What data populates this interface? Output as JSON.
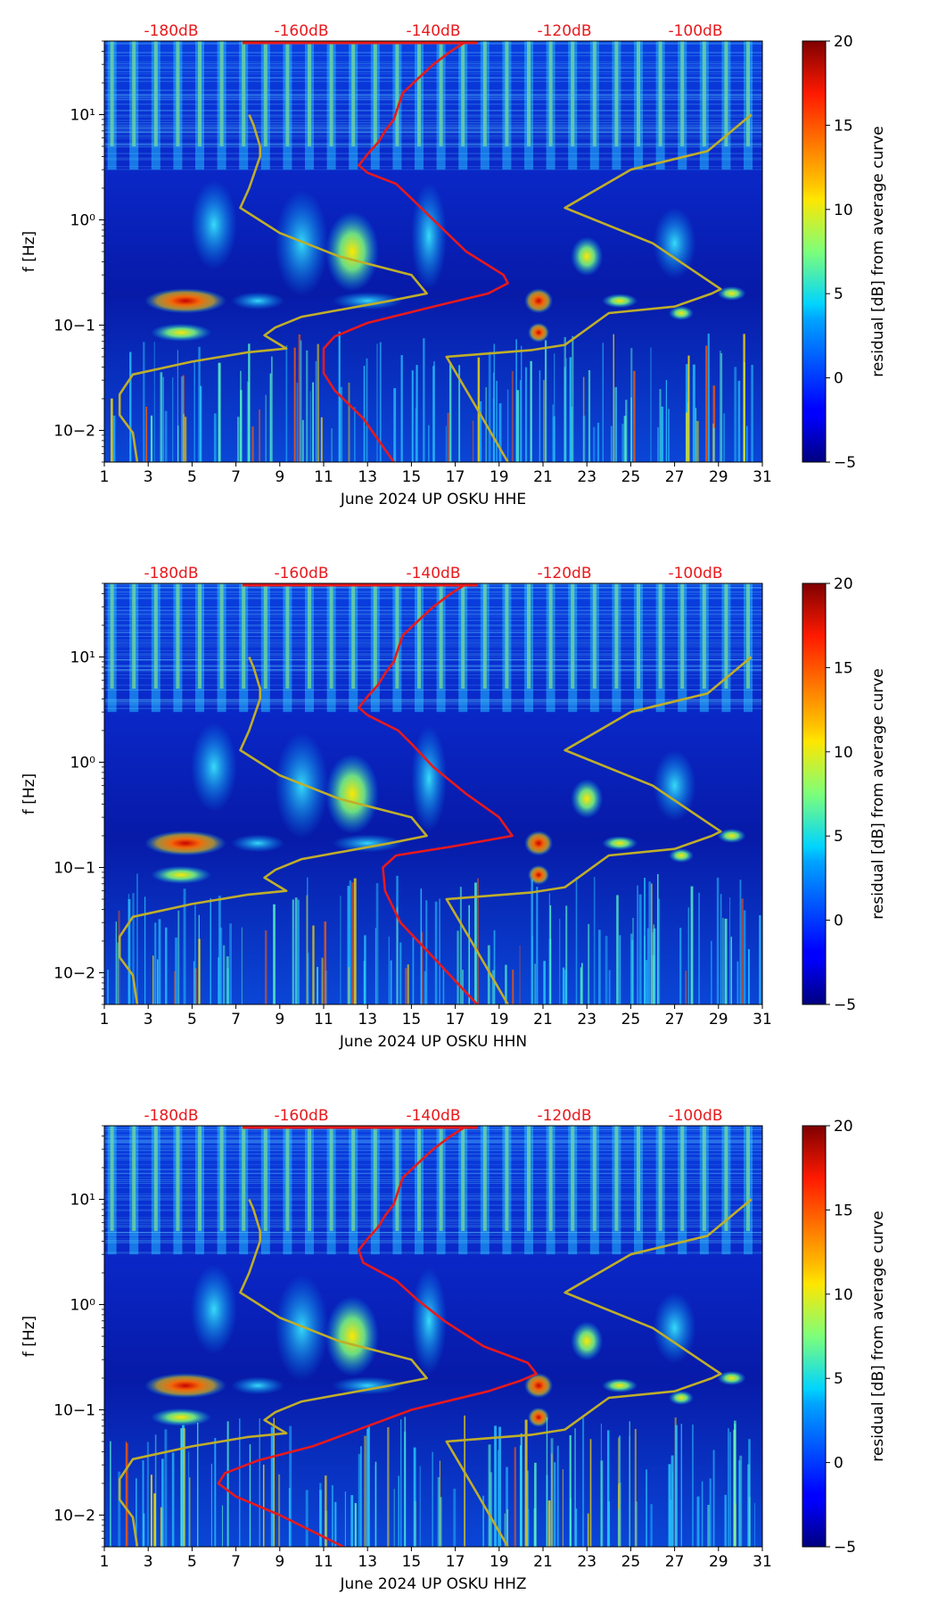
{
  "chart_data": [
    {
      "type": "heatmap",
      "channel": "HHE",
      "xlabel": "June 2024 UP OSKU  HHE",
      "ylabel": "f [Hz]",
      "x_ticks": [
        1,
        3,
        5,
        7,
        9,
        11,
        13,
        15,
        17,
        19,
        21,
        23,
        25,
        27,
        29,
        31
      ],
      "xlim": [
        1,
        31
      ],
      "y_scale": "log",
      "ylim": [
        0.005,
        50
      ],
      "y_tick_labels": [
        "10−2",
        "10−1",
        "10⁰",
        "10¹"
      ],
      "top_axis_labels": [
        "-180dB",
        "-160dB",
        "-140dB",
        "-120dB",
        "-100dB"
      ],
      "colorbar": {
        "label": "residual [dB] from average curve",
        "range": [
          -5,
          20
        ],
        "tick_labels": [
          "20",
          "15",
          "10",
          "5",
          "0",
          "−5"
        ]
      },
      "series": [
        {
          "name": "reference noise model",
          "color": "#bfae2a",
          "points": [
            [
              2.5,
              0.005
            ],
            [
              2.3,
              0.0095
            ],
            [
              1.7,
              0.014
            ],
            [
              1.7,
              0.022
            ],
            [
              2.3,
              0.034
            ],
            [
              5,
              0.045
            ],
            [
              7.5,
              0.055
            ],
            [
              9.3,
              0.06
            ],
            [
              8.3,
              0.08
            ],
            [
              8.8,
              0.095
            ],
            [
              10,
              0.12
            ],
            [
              14,
              0.17
            ],
            [
              15.7,
              0.2
            ],
            [
              15,
              0.3
            ],
            [
              11.7,
              0.45
            ],
            [
              9,
              0.75
            ],
            [
              7.2,
              1.3
            ],
            [
              7.6,
              2
            ],
            [
              8.1,
              4
            ],
            [
              8.1,
              5
            ],
            [
              7.8,
              8
            ],
            [
              7.6,
              10
            ]
          ]
        },
        {
          "name": "reference noise model (right branch)",
          "color": "#bfae2a",
          "points": [
            [
              19.4,
              0.005
            ],
            [
              18,
              0.016
            ],
            [
              16.6,
              0.05
            ],
            [
              20.5,
              0.058
            ],
            [
              22,
              0.065
            ],
            [
              24,
              0.13
            ],
            [
              27,
              0.15
            ],
            [
              28.7,
              0.2
            ],
            [
              29.1,
              0.22
            ],
            [
              26,
              0.6
            ],
            [
              22,
              1.3
            ],
            [
              25,
              3
            ],
            [
              28.5,
              4.5
            ],
            [
              30.5,
              10
            ]
          ]
        },
        {
          "name": "average PSD",
          "color": "#e8191c",
          "points": [
            [
              14.2,
              0.005
            ],
            [
              12.8,
              0.013
            ],
            [
              11.5,
              0.024
            ],
            [
              11.0,
              0.035
            ],
            [
              11.0,
              0.06
            ],
            [
              11.5,
              0.078
            ],
            [
              13,
              0.105
            ],
            [
              16,
              0.15
            ],
            [
              18.5,
              0.2
            ],
            [
              19.4,
              0.25
            ],
            [
              19.2,
              0.3
            ],
            [
              17.5,
              0.5
            ],
            [
              16,
              1.0
            ],
            [
              15,
              1.6
            ],
            [
              14.3,
              2.2
            ],
            [
              13,
              2.8
            ],
            [
              12.6,
              3.3
            ],
            [
              13,
              4.2
            ],
            [
              13.5,
              5.5
            ],
            [
              13.8,
              7
            ],
            [
              14.2,
              9
            ],
            [
              14.4,
              12
            ],
            [
              14.6,
              16
            ],
            [
              15.3,
              22
            ],
            [
              16,
              30
            ],
            [
              16.8,
              40
            ],
            [
              17.4,
              48
            ]
          ]
        }
      ]
    },
    {
      "type": "heatmap",
      "channel": "HHN",
      "xlabel": "June 2024 UP OSKU  HHN",
      "ylabel": "f [Hz]",
      "x_ticks": [
        1,
        3,
        5,
        7,
        9,
        11,
        13,
        15,
        17,
        19,
        21,
        23,
        25,
        27,
        29,
        31
      ],
      "xlim": [
        1,
        31
      ],
      "y_scale": "log",
      "ylim": [
        0.005,
        50
      ],
      "y_tick_labels": [
        "10−2",
        "10−1",
        "10⁰",
        "10¹"
      ],
      "top_axis_labels": [
        "-180dB",
        "-160dB",
        "-140dB",
        "-120dB",
        "-100dB"
      ],
      "colorbar": {
        "label": "residual [dB] from average curve",
        "range": [
          -5,
          20
        ],
        "tick_labels": [
          "20",
          "15",
          "10",
          "5",
          "0",
          "−5"
        ]
      },
      "series": [
        {
          "name": "reference noise model",
          "color": "#bfae2a",
          "points": [
            [
              2.5,
              0.005
            ],
            [
              2.3,
              0.0095
            ],
            [
              1.7,
              0.014
            ],
            [
              1.7,
              0.022
            ],
            [
              2.3,
              0.034
            ],
            [
              5,
              0.045
            ],
            [
              7.5,
              0.055
            ],
            [
              9.3,
              0.06
            ],
            [
              8.3,
              0.08
            ],
            [
              8.8,
              0.095
            ],
            [
              10,
              0.12
            ],
            [
              14,
              0.17
            ],
            [
              15.7,
              0.2
            ],
            [
              15,
              0.3
            ],
            [
              11.7,
              0.45
            ],
            [
              9,
              0.75
            ],
            [
              7.2,
              1.3
            ],
            [
              7.6,
              2
            ],
            [
              8.1,
              4
            ],
            [
              8.1,
              5
            ],
            [
              7.8,
              8
            ],
            [
              7.6,
              10
            ]
          ]
        },
        {
          "name": "reference noise model (right branch)",
          "color": "#bfae2a",
          "points": [
            [
              19.4,
              0.005
            ],
            [
              18,
              0.016
            ],
            [
              16.6,
              0.05
            ],
            [
              20.5,
              0.058
            ],
            [
              22,
              0.065
            ],
            [
              24,
              0.13
            ],
            [
              27,
              0.15
            ],
            [
              28.7,
              0.2
            ],
            [
              29.1,
              0.22
            ],
            [
              26,
              0.6
            ],
            [
              22,
              1.3
            ],
            [
              25,
              3
            ],
            [
              28.5,
              4.5
            ],
            [
              30.5,
              10
            ]
          ]
        },
        {
          "name": "average PSD",
          "color": "#e8191c",
          "points": [
            [
              18.0,
              0.005
            ],
            [
              16.0,
              0.014
            ],
            [
              14.5,
              0.03
            ],
            [
              13.8,
              0.06
            ],
            [
              13.7,
              0.1
            ],
            [
              14.3,
              0.13
            ],
            [
              17,
              0.16
            ],
            [
              19.6,
              0.2
            ],
            [
              19.0,
              0.3
            ],
            [
              17.5,
              0.5
            ],
            [
              16,
              0.9
            ],
            [
              15,
              1.5
            ],
            [
              14.4,
              2.0
            ],
            [
              13,
              2.8
            ],
            [
              12.6,
              3.3
            ],
            [
              13,
              4.2
            ],
            [
              13.5,
              5.5
            ],
            [
              13.8,
              7
            ],
            [
              14.2,
              9
            ],
            [
              14.4,
              12
            ],
            [
              14.6,
              16
            ],
            [
              15.3,
              22
            ],
            [
              16,
              30
            ],
            [
              16.8,
              40
            ],
            [
              17.4,
              48
            ]
          ]
        }
      ]
    },
    {
      "type": "heatmap",
      "channel": "HHZ",
      "xlabel": "June 2024 UP OSKU  HHZ",
      "ylabel": "f [Hz]",
      "x_ticks": [
        1,
        3,
        5,
        7,
        9,
        11,
        13,
        15,
        17,
        19,
        21,
        23,
        25,
        27,
        29,
        31
      ],
      "xlim": [
        1,
        31
      ],
      "y_scale": "log",
      "ylim": [
        0.005,
        50
      ],
      "y_tick_labels": [
        "10−2",
        "10−1",
        "10⁰",
        "10¹"
      ],
      "top_axis_labels": [
        "-180dB",
        "-160dB",
        "-140dB",
        "-120dB",
        "-100dB"
      ],
      "colorbar": {
        "label": "residual [dB] from average curve",
        "range": [
          -5,
          20
        ],
        "tick_labels": [
          "20",
          "15",
          "10",
          "5",
          "0",
          "−5"
        ]
      },
      "series": [
        {
          "name": "reference noise model",
          "color": "#bfae2a",
          "points": [
            [
              2.5,
              0.005
            ],
            [
              2.3,
              0.0095
            ],
            [
              1.7,
              0.014
            ],
            [
              1.7,
              0.022
            ],
            [
              2.3,
              0.034
            ],
            [
              5,
              0.045
            ],
            [
              7.5,
              0.055
            ],
            [
              9.3,
              0.06
            ],
            [
              8.3,
              0.08
            ],
            [
              8.8,
              0.095
            ],
            [
              10,
              0.12
            ],
            [
              14,
              0.17
            ],
            [
              15.7,
              0.2
            ],
            [
              15,
              0.3
            ],
            [
              11.7,
              0.45
            ],
            [
              9,
              0.75
            ],
            [
              7.2,
              1.3
            ],
            [
              7.6,
              2
            ],
            [
              8.1,
              4
            ],
            [
              8.1,
              5
            ],
            [
              7.8,
              8
            ],
            [
              7.6,
              10
            ]
          ]
        },
        {
          "name": "reference noise model (right branch)",
          "color": "#bfae2a",
          "points": [
            [
              19.4,
              0.005
            ],
            [
              18,
              0.016
            ],
            [
              16.6,
              0.05
            ],
            [
              20.5,
              0.058
            ],
            [
              22,
              0.065
            ],
            [
              24,
              0.13
            ],
            [
              27,
              0.15
            ],
            [
              28.7,
              0.2
            ],
            [
              29.1,
              0.22
            ],
            [
              26,
              0.6
            ],
            [
              22,
              1.3
            ],
            [
              25,
              3
            ],
            [
              28.5,
              4.5
            ],
            [
              30.5,
              10
            ]
          ]
        },
        {
          "name": "average PSD",
          "color": "#e8191c",
          "points": [
            [
              11.9,
              0.005
            ],
            [
              10.5,
              0.007
            ],
            [
              9.0,
              0.01
            ],
            [
              7,
              0.015
            ],
            [
              6.2,
              0.02
            ],
            [
              6.5,
              0.025
            ],
            [
              8,
              0.033
            ],
            [
              10.5,
              0.045
            ],
            [
              13,
              0.07
            ],
            [
              15,
              0.1
            ],
            [
              18.5,
              0.15
            ],
            [
              20,
              0.19
            ],
            [
              20.7,
              0.22
            ],
            [
              20.3,
              0.28
            ],
            [
              18.3,
              0.4
            ],
            [
              16.5,
              0.7
            ],
            [
              15.3,
              1.1
            ],
            [
              14.3,
              1.7
            ],
            [
              12.8,
              2.5
            ],
            [
              12.6,
              3.3
            ],
            [
              13,
              4.2
            ],
            [
              13.5,
              5.5
            ],
            [
              13.8,
              7
            ],
            [
              14.2,
              9
            ],
            [
              14.4,
              12
            ],
            [
              14.6,
              16
            ],
            [
              15.3,
              22
            ],
            [
              16,
              30
            ],
            [
              16.8,
              40
            ],
            [
              17.4,
              48
            ]
          ]
        }
      ]
    }
  ]
}
